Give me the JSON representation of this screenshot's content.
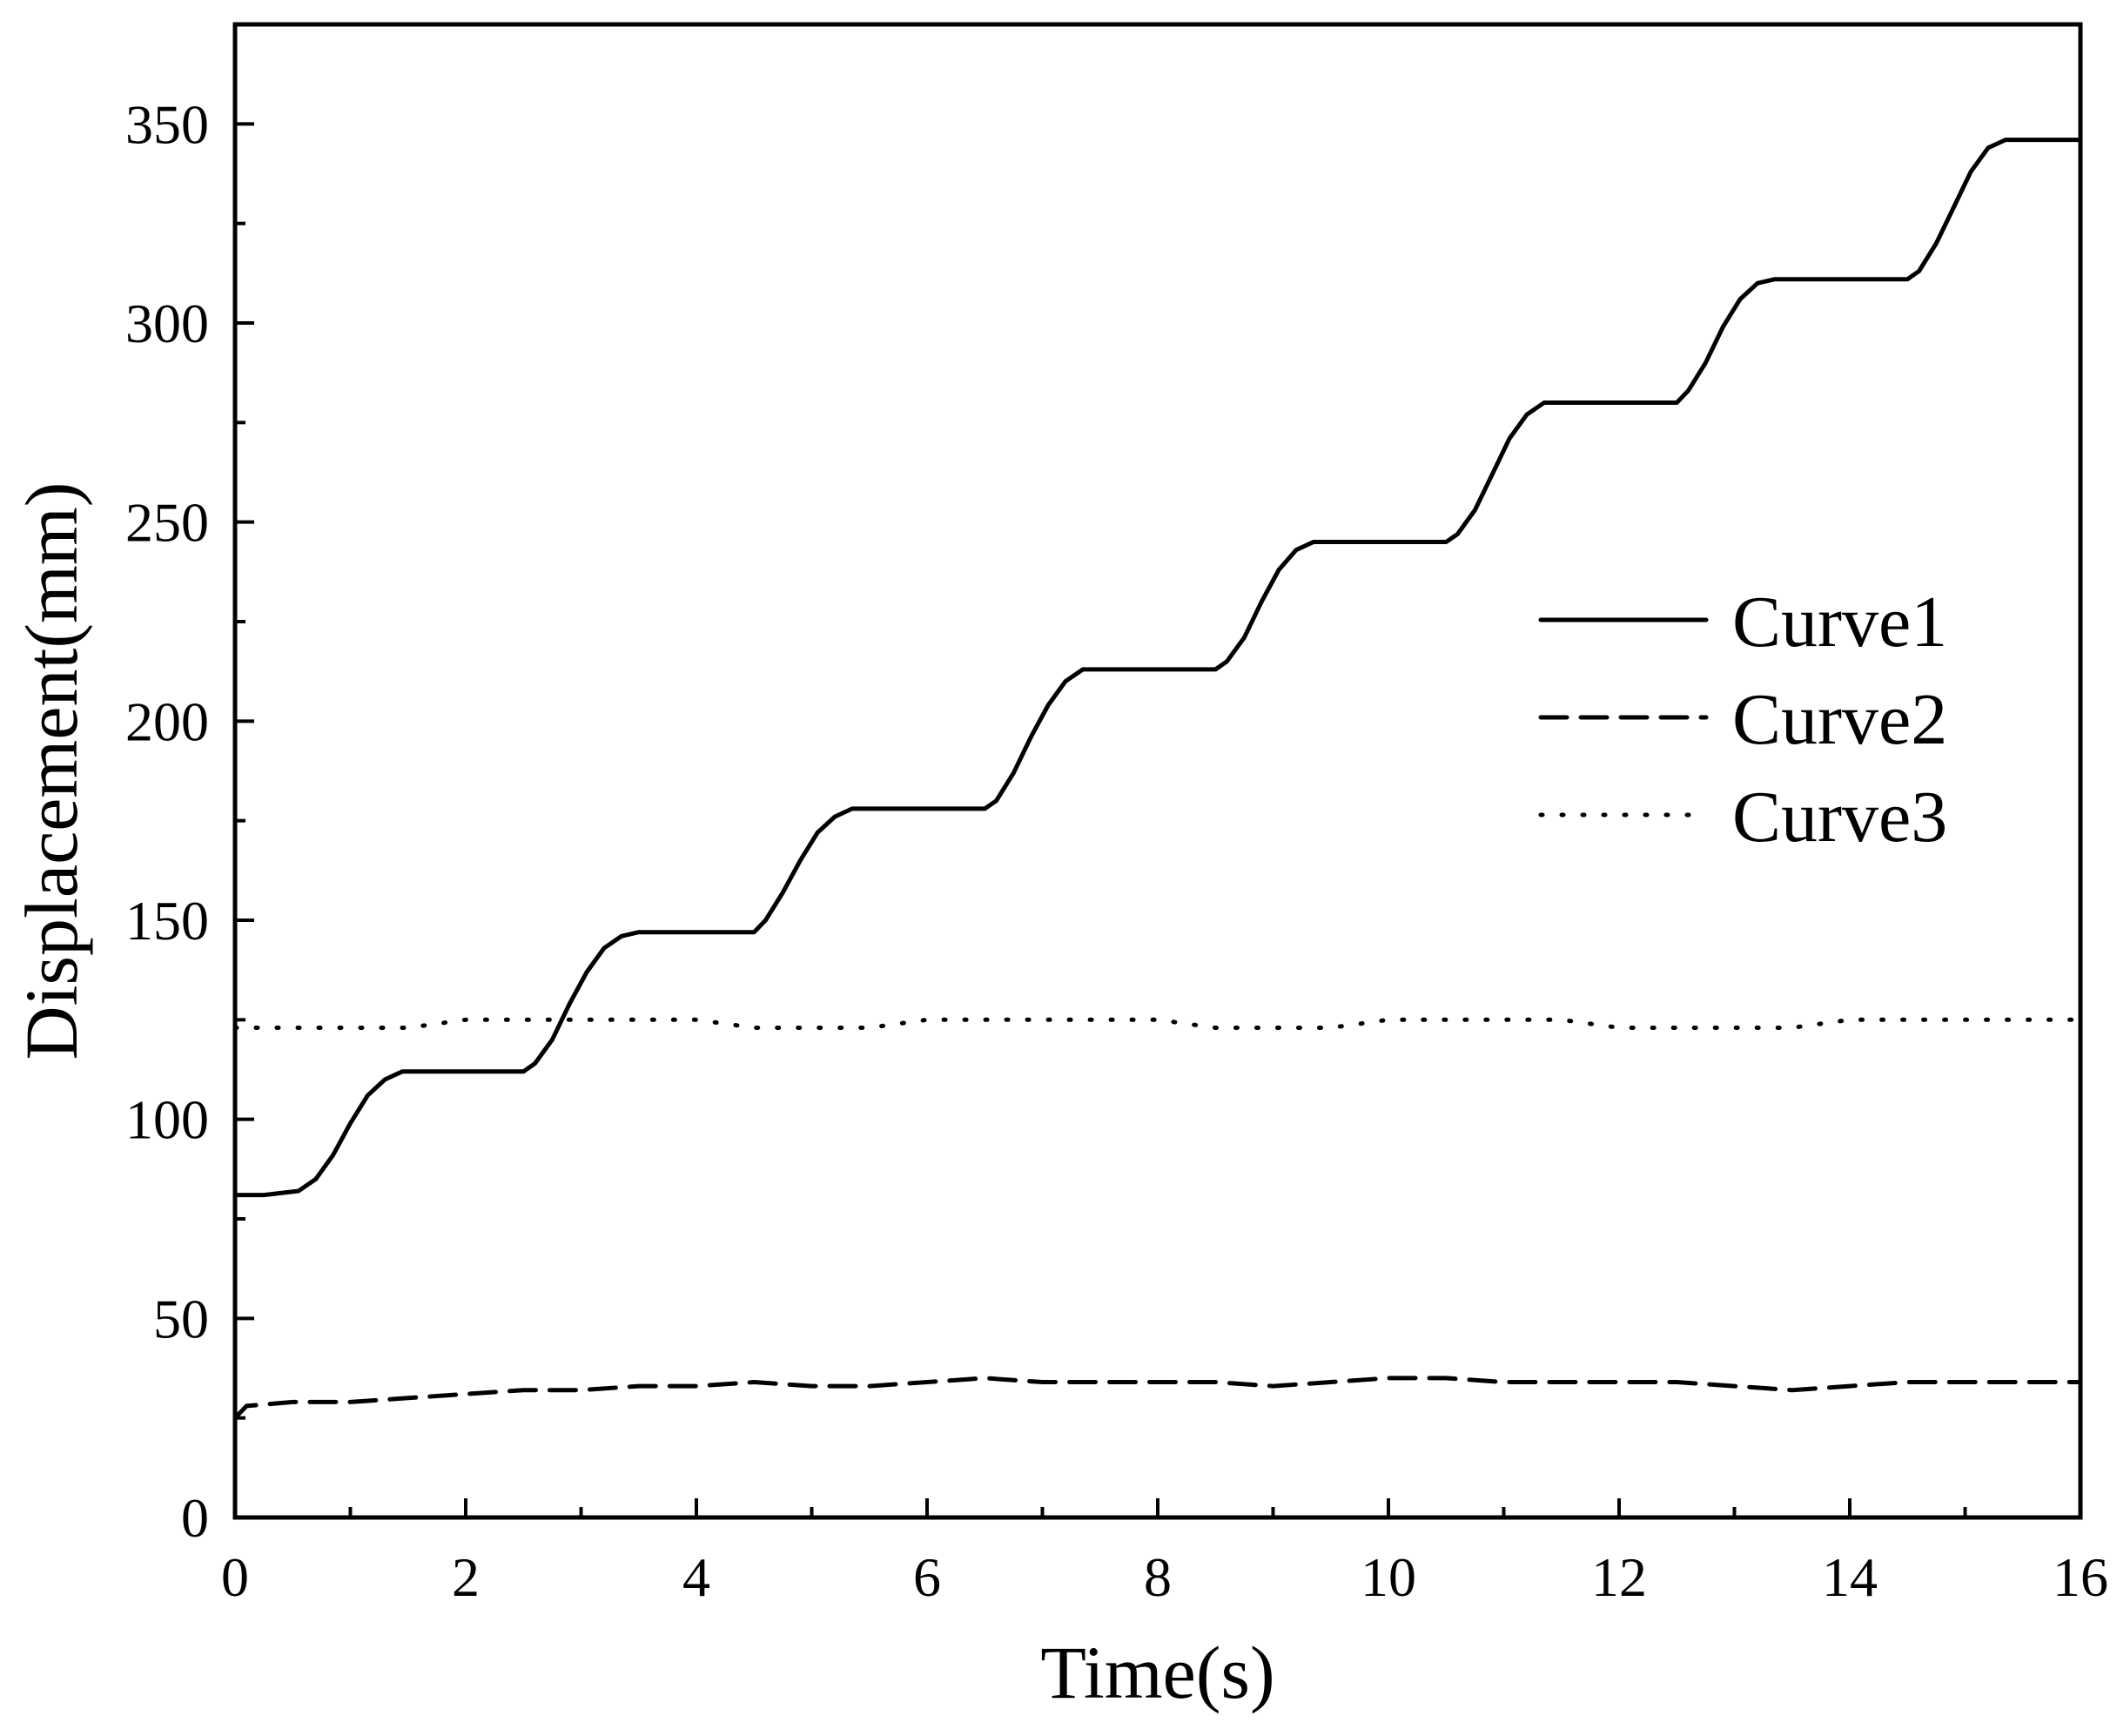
{
  "chart_data": {
    "type": "line",
    "title": "",
    "xlabel": "Time(s)",
    "ylabel": "Displacement(mm)",
    "xlim": [
      0,
      16
    ],
    "ylim": [
      0,
      375
    ],
    "xticks": [
      0,
      2,
      4,
      6,
      8,
      10,
      12,
      14,
      16
    ],
    "yticks": [
      0,
      50,
      100,
      150,
      200,
      250,
      300,
      350
    ],
    "xticks_minor": [
      1,
      3,
      5,
      7,
      9,
      11,
      13,
      15
    ],
    "yticks_minor": [
      25,
      75,
      125,
      175,
      225,
      275,
      325
    ],
    "grid": false,
    "legend_position": "right",
    "series": [
      {
        "name": "Curve1",
        "style": "solid",
        "color": "#000000",
        "x": [
          0,
          0.25,
          0.55,
          0.7,
          0.85,
          1.0,
          1.15,
          1.3,
          1.45,
          1.6,
          2.0,
          2.5,
          2.6,
          2.75,
          2.9,
          3.05,
          3.2,
          3.35,
          3.5,
          3.6,
          4.0,
          4.5,
          4.6,
          4.75,
          4.9,
          5.05,
          5.2,
          5.35,
          5.5,
          5.6,
          6.0,
          6.5,
          6.6,
          6.75,
          6.9,
          7.05,
          7.2,
          7.35,
          7.5,
          7.6,
          8.0,
          8.5,
          8.6,
          8.75,
          8.9,
          9.05,
          9.2,
          9.35,
          9.5,
          9.6,
          10.0,
          10.5,
          10.6,
          10.75,
          10.9,
          11.05,
          11.2,
          11.35,
          11.5,
          11.6,
          12.0,
          12.5,
          12.6,
          12.75,
          12.9,
          13.05,
          13.2,
          13.35,
          13.5,
          13.6,
          14.0,
          14.5,
          14.6,
          14.75,
          14.9,
          15.05,
          15.2,
          15.35,
          15.5,
          15.6,
          16.0
        ],
        "y": [
          81,
          81,
          82,
          85,
          91,
          99,
          106,
          110,
          112,
          112,
          112,
          112,
          114,
          120,
          129,
          137,
          143,
          146,
          147,
          147,
          147,
          147,
          150,
          157,
          165,
          172,
          176,
          178,
          178,
          178,
          178,
          178,
          180,
          187,
          196,
          204,
          210,
          213,
          213,
          213,
          213,
          213,
          215,
          221,
          230,
          238,
          243,
          245,
          245,
          245,
          245,
          245,
          247,
          253,
          262,
          271,
          277,
          280,
          280,
          280,
          280,
          280,
          283,
          290,
          299,
          306,
          310,
          311,
          311,
          311,
          311,
          311,
          313,
          320,
          329,
          338,
          344,
          346,
          346,
          346,
          346
        ]
      },
      {
        "name": "Curve2",
        "style": "dashed",
        "color": "#000000",
        "x": [
          0,
          0.1,
          0.5,
          1,
          1.5,
          2,
          2.5,
          3,
          3.5,
          4,
          4.5,
          5,
          5.5,
          6,
          6.5,
          7,
          7.5,
          8,
          8.5,
          9,
          9.5,
          10,
          10.5,
          11,
          11.5,
          12,
          12.5,
          13,
          13.5,
          14,
          14.5,
          15,
          15.5,
          16
        ],
        "y": [
          25,
          28,
          29,
          29,
          30,
          31,
          32,
          32,
          33,
          33,
          34,
          33,
          33,
          34,
          35,
          34,
          34,
          34,
          34,
          33,
          34,
          35,
          35,
          34,
          34,
          34,
          34,
          33,
          32,
          33,
          34,
          34,
          34,
          34
        ]
      },
      {
        "name": "Curve3",
        "style": "dotted",
        "color": "#000000",
        "x": [
          0,
          0.5,
          1,
          1.5,
          2,
          2.5,
          3,
          3.5,
          4,
          4.5,
          5,
          5.5,
          6,
          6.5,
          7,
          7.5,
          8,
          8.5,
          9,
          9.5,
          10,
          10.5,
          11,
          11.5,
          12,
          12.5,
          13,
          13.5,
          14,
          14.5,
          15,
          15.5,
          16
        ],
        "y": [
          123,
          123,
          123,
          123,
          125,
          125,
          125,
          125,
          125,
          123,
          123,
          123,
          125,
          125,
          125,
          125,
          125,
          123,
          123,
          123,
          125,
          125,
          125,
          125,
          123,
          123,
          123,
          123,
          125,
          125,
          125,
          125,
          125
        ]
      }
    ]
  }
}
